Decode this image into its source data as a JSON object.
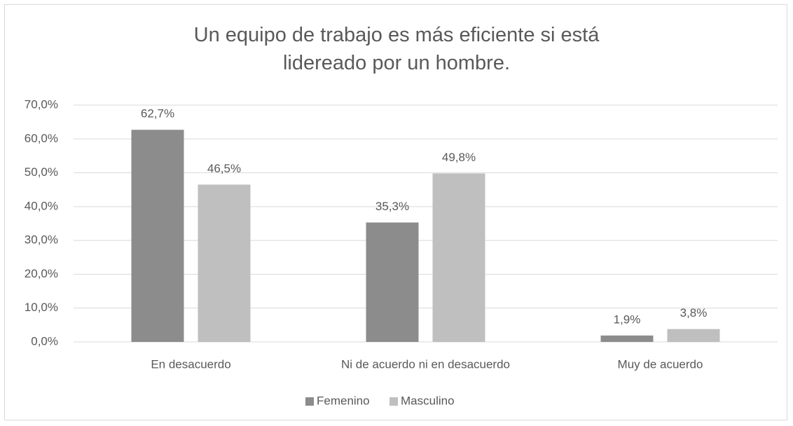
{
  "chart_data": {
    "type": "bar",
    "title": "Un equipo de trabajo es más eficiente si está lidereado por un hombre.",
    "categories": [
      "En desacuerdo",
      "Ni de acuerdo ni en desacuerdo",
      "Muy de acuerdo"
    ],
    "series": [
      {
        "name": "Femenino",
        "color": "#8c8c8c",
        "values": [
          62.7,
          35.3,
          1.9
        ],
        "value_labels": [
          "62,7%",
          "35,3%",
          "1,9%"
        ]
      },
      {
        "name": "Masculino",
        "color": "#bfbfbf",
        "values": [
          46.5,
          49.8,
          3.8
        ],
        "value_labels": [
          "46,5%",
          "49,8%",
          "3,8%"
        ]
      }
    ],
    "ylim": [
      0,
      70
    ],
    "yticks": [
      {
        "value": 0,
        "label": "0,0%"
      },
      {
        "value": 10,
        "label": "10,0%"
      },
      {
        "value": 20,
        "label": "20,0%"
      },
      {
        "value": 30,
        "label": "30,0%"
      },
      {
        "value": 40,
        "label": "40,0%"
      },
      {
        "value": 50,
        "label": "50,0%"
      },
      {
        "value": 60,
        "label": "60,0%"
      },
      {
        "value": 70,
        "label": "70,0%"
      }
    ],
    "grid": true,
    "legend": "bottom"
  }
}
